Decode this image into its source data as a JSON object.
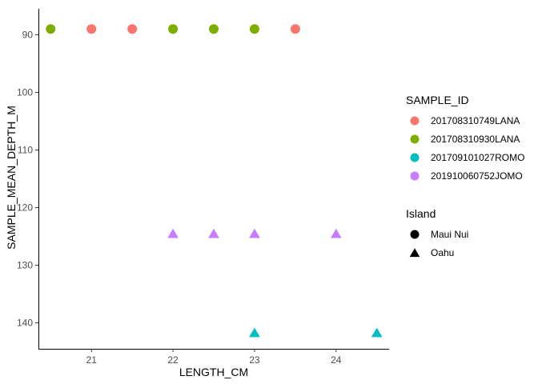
{
  "chart_data": {
    "type": "scatter",
    "xlabel": "LENGTH_CM",
    "ylabel": "SAMPLE_MEAN_DEPTH_M",
    "xlim": [
      20.35,
      24.65
    ],
    "ylim": [
      85.5,
      144.5
    ],
    "y_reversed": true,
    "x_ticks": [
      21,
      22,
      23,
      24
    ],
    "y_ticks": [
      90,
      100,
      110,
      120,
      130,
      140
    ],
    "grid": false,
    "legend_position": "right",
    "color_legend": {
      "title": "SAMPLE_ID",
      "entries": [
        {
          "name": "201708310749LANA",
          "color": "#F8766D"
        },
        {
          "name": "201708310930LANA",
          "color": "#7CAE00"
        },
        {
          "name": "201709101027ROMO",
          "color": "#00BFC4"
        },
        {
          "name": "201910060752JOMO",
          "color": "#C77CFF"
        }
      ]
    },
    "shape_legend": {
      "title": "Island",
      "entries": [
        {
          "name": "Maui Nui",
          "shape": "circle"
        },
        {
          "name": "Oahu",
          "shape": "triangle"
        }
      ]
    },
    "points": [
      {
        "x": 21.0,
        "y": 89,
        "sample": "201708310749LANA",
        "island": "Maui Nui"
      },
      {
        "x": 21.5,
        "y": 89,
        "sample": "201708310749LANA",
        "island": "Maui Nui"
      },
      {
        "x": 23.5,
        "y": 89,
        "sample": "201708310749LANA",
        "island": "Maui Nui"
      },
      {
        "x": 20.5,
        "y": 89,
        "sample": "201708310930LANA",
        "island": "Maui Nui"
      },
      {
        "x": 22.0,
        "y": 89,
        "sample": "201708310930LANA",
        "island": "Maui Nui"
      },
      {
        "x": 22.5,
        "y": 89,
        "sample": "201708310930LANA",
        "island": "Maui Nui"
      },
      {
        "x": 23.0,
        "y": 89,
        "sample": "201708310930LANA",
        "island": "Maui Nui"
      },
      {
        "x": 22.0,
        "y": 124.5,
        "sample": "201910060752JOMO",
        "island": "Oahu"
      },
      {
        "x": 22.5,
        "y": 124.5,
        "sample": "201910060752JOMO",
        "island": "Oahu"
      },
      {
        "x": 23.0,
        "y": 124.5,
        "sample": "201910060752JOMO",
        "island": "Oahu"
      },
      {
        "x": 24.0,
        "y": 124.5,
        "sample": "201910060752JOMO",
        "island": "Oahu"
      },
      {
        "x": 23.0,
        "y": 141.7,
        "sample": "201709101027ROMO",
        "island": "Oahu"
      },
      {
        "x": 24.5,
        "y": 141.7,
        "sample": "201709101027ROMO",
        "island": "Oahu"
      }
    ]
  }
}
